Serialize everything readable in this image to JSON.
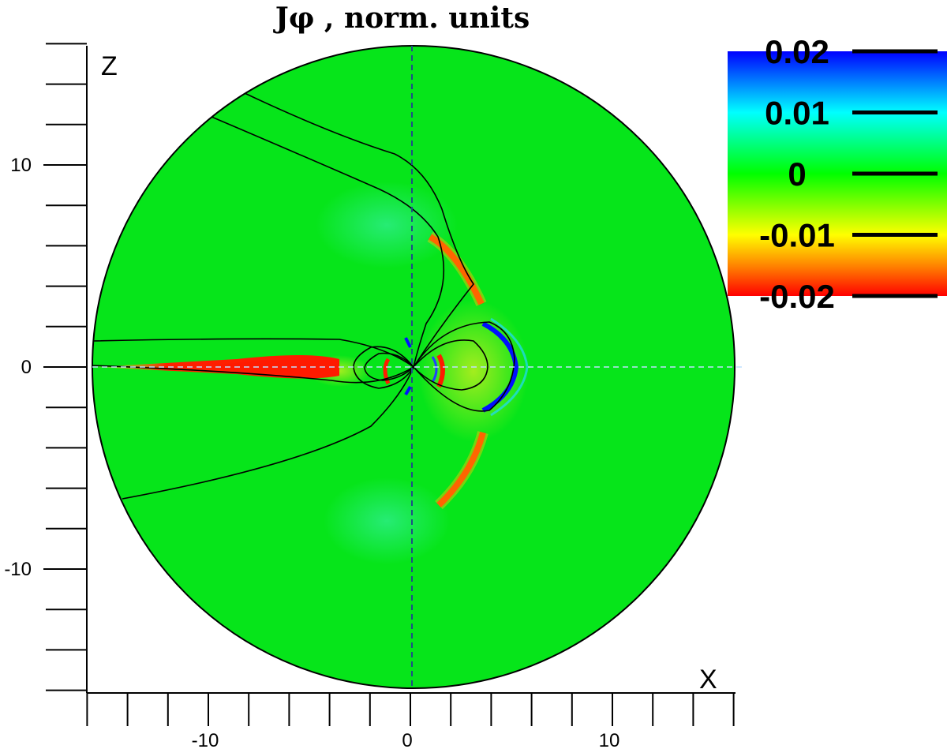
{
  "chart_data": {
    "type": "heatmap",
    "title": "Jφ , norm. units",
    "xlabel": "X",
    "ylabel": "Z",
    "xlim": [
      -16,
      16
    ],
    "ylim": [
      -16,
      16
    ],
    "domain_radius": 16,
    "x_ticks": [
      -10,
      0,
      10
    ],
    "z_ticks": [
      10,
      0,
      -10
    ],
    "grid": false,
    "colorbar": {
      "placement": "top-right",
      "range": [
        -0.02,
        0.02
      ],
      "tick_labels": [
        "0.02",
        "0.01",
        "0",
        "-0.01",
        "-0.02"
      ],
      "tick_values": [
        0.02,
        0.01,
        0,
        -0.01,
        -0.02
      ],
      "colors": [
        "#0000ff",
        "#00ffff",
        "#00ff00",
        "#ffff00",
        "#ff0000"
      ]
    },
    "background_value": 0,
    "current_features": [
      {
        "name": "tail-sheet",
        "value": -0.02
      },
      {
        "name": "dayside-boundary",
        "value": 0.02
      },
      {
        "name": "north-cusp-arc",
        "value": -0.02
      },
      {
        "name": "south-cusp-arc",
        "value": -0.02
      }
    ]
  },
  "colors": {
    "background_green": "#06e51a",
    "negative_red": "#ff1a00",
    "positive_blue": "#0010ff",
    "reference_line": "#1d4f86"
  }
}
